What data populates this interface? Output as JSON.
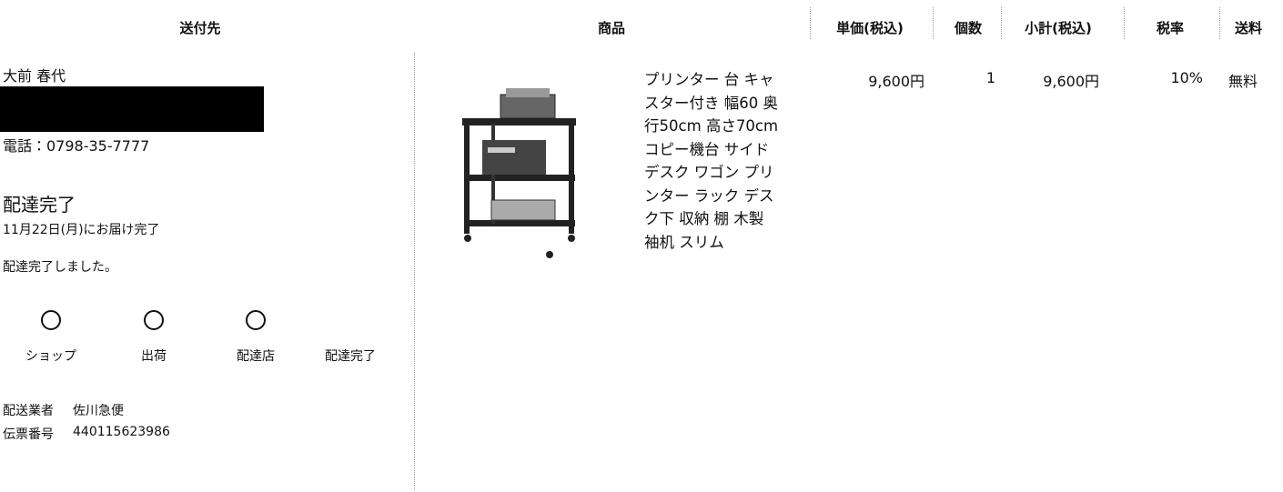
{
  "header": {
    "columns": [
      "送付先",
      "商品",
      "単価(税込)",
      "個数",
      "小計(税込)",
      "税率",
      "送料"
    ]
  },
  "recipient": {
    "name": "大前 春代",
    "phone": "電話：0798-35-7777"
  },
  "delivery": {
    "status": "配達完了",
    "date": "11月22日(月)にお届け完了",
    "message": "配達完了しました。",
    "steps": [
      "ショップ",
      "出荷",
      "配達店",
      "配達完了"
    ],
    "carrier_label": "配送業者",
    "carrier": "佐川急便",
    "tracking_label": "伝票番号",
    "tracking": "440115623986"
  },
  "item": {
    "name": "プリンター 台 キャスター付き 幅60 奥行50cm 高さ70cm コピー機台 サイド デスク ワゴン プリンター ラック デスク下 収納 棚 木製 袖机 スリム",
    "unit_price": "9,600円",
    "quantity": "1",
    "subtotal": "9,600円",
    "tax_rate": "10%",
    "shipping": "無料"
  }
}
